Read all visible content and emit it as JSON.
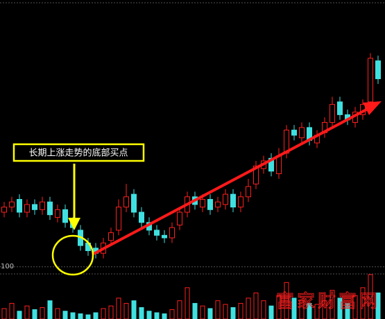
{
  "chart_data": {
    "type": "candlestick",
    "annotation": "长期上涨走势的底部买点",
    "watermark": "富家财富网",
    "up_color": "#ff2020",
    "down_color": "#40e0e0",
    "open": [
      20,
      22,
      25,
      20,
      23,
      21,
      24,
      18,
      21,
      16,
      13,
      8,
      6,
      4,
      9,
      13,
      22,
      27,
      20,
      16,
      13,
      11,
      10,
      15,
      20,
      26,
      22,
      25,
      22,
      23,
      27,
      22,
      26,
      31,
      37,
      41,
      35,
      43,
      52,
      49,
      53,
      47,
      51,
      55,
      63,
      58,
      55,
      58,
      63,
      79
    ],
    "high": [
      24,
      26,
      27,
      25,
      25,
      26,
      26,
      23,
      23,
      18,
      15,
      10,
      8,
      10,
      14,
      25,
      31,
      29,
      22,
      18,
      15,
      13,
      16,
      22,
      28,
      28,
      27,
      27,
      26,
      29,
      29,
      28,
      33,
      40,
      42,
      43,
      45,
      54,
      54,
      55,
      55,
      52,
      57,
      65,
      65,
      60,
      61,
      64,
      82,
      81
    ],
    "low": [
      18,
      20,
      18,
      18,
      19,
      19,
      17,
      16,
      14,
      12,
      5,
      3,
      2,
      2,
      7,
      11,
      20,
      18,
      14,
      11,
      9,
      8,
      8,
      13,
      18,
      21,
      20,
      19,
      20,
      21,
      20,
      20,
      24,
      29,
      35,
      34,
      33,
      41,
      48,
      47,
      46,
      45,
      49,
      53,
      56,
      54,
      53,
      56,
      61,
      70
    ],
    "close": [
      22,
      24,
      20,
      23,
      21,
      24,
      19,
      21,
      16,
      14,
      7,
      5,
      4,
      8,
      12,
      22,
      26,
      20,
      16,
      13,
      11,
      10,
      14,
      20,
      26,
      23,
      25,
      21,
      24,
      27,
      22,
      26,
      30,
      38,
      40,
      36,
      42,
      52,
      50,
      53,
      48,
      50,
      55,
      62,
      58,
      56,
      59,
      62,
      80,
      72
    ],
    "ylim": [
      0,
      100
    ],
    "volume": [
      20,
      30,
      15,
      25,
      18,
      22,
      35,
      20,
      15,
      12,
      10,
      8,
      12,
      20,
      25,
      40,
      30,
      35,
      22,
      15,
      12,
      10,
      18,
      35,
      60,
      30,
      25,
      20,
      35,
      28,
      22,
      30,
      40,
      50,
      35,
      25,
      45,
      70,
      40,
      35,
      30,
      28,
      35,
      55,
      40,
      30,
      45,
      60,
      85,
      50
    ],
    "volume_ylim": [
      0,
      105
    ],
    "volume_yticks": [
      100
    ]
  }
}
